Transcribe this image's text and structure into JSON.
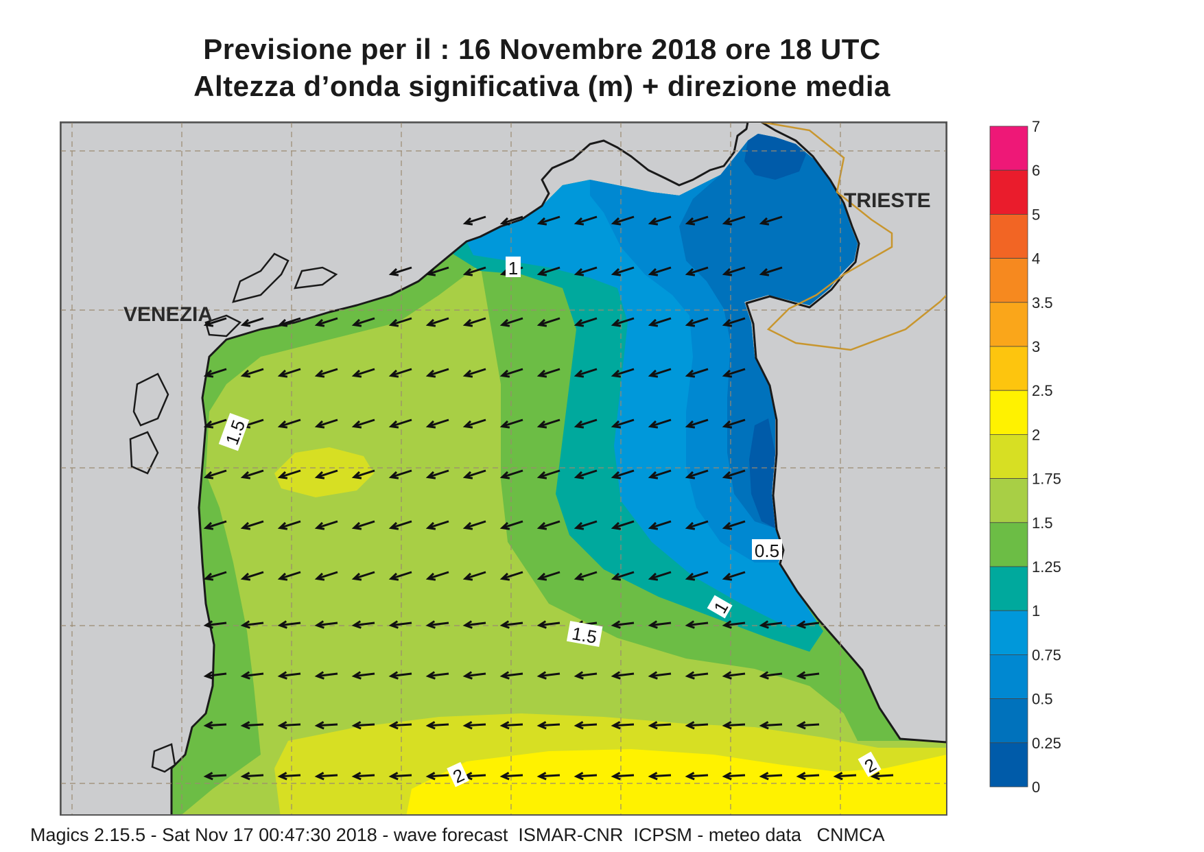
{
  "title": {
    "line1": "Previsione per il  :  16 Novembre  2018   ore 18 UTC",
    "line2": "Altezza d’onda significativa (m) + direzione media"
  },
  "map_labels": {
    "venezia": "VENEZIA",
    "trieste": "TRIESTE"
  },
  "contour_labels": [
    "1",
    "1.5",
    "1.5",
    "1",
    "0.5",
    "2",
    "2"
  ],
  "legend": {
    "levels": [
      "7",
      "6",
      "5",
      "4",
      "3.5",
      "3",
      "2.5",
      "2",
      "1.75",
      "1.5",
      "1.25",
      "1",
      "0.75",
      "0.5",
      "0.25",
      "0"
    ],
    "colors": [
      "#ee1877",
      "#ea1c2c",
      "#f26524",
      "#f6891f",
      "#faa61a",
      "#fdc50e",
      "#fff200",
      "#d7df23",
      "#a8cf45",
      "#6cbd45",
      "#00a99d",
      "#0098da",
      "#0088d1",
      "#0072bc",
      "#005ba9"
    ]
  },
  "colors": {
    "land": "#cccdcf",
    "coast": "#1a1a1a",
    "border": "#c8962e",
    "grid": "#9a8a70"
  },
  "footer": "Magics 2.15.5 - Sat Nov 17 00:47:30 2018 - wave forecast  ISMAR-CNR  ICPSM - meteo data   CNMCA"
}
